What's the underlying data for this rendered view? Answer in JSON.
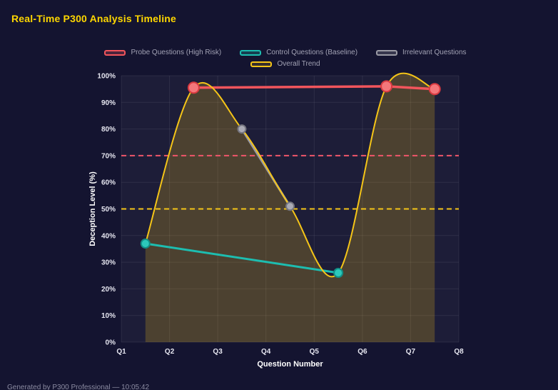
{
  "header": {
    "title": "Real-Time P300 Analysis Timeline"
  },
  "footer": {
    "text": "Generated by P300 Professional — 10:05:42"
  },
  "colors": {
    "background": "#141430",
    "plot_background": "#1d1d38",
    "title": "#ffd700",
    "probe": "#f2555c",
    "control": "#1dbdb0",
    "irrelevant": "#9a9aa4",
    "trend": "#f5c518",
    "threshold_high": "#f0566a",
    "threshold_mid": "#f5c518"
  },
  "chart_data": {
    "type": "line",
    "title": "Real-Time P300 Analysis Timeline",
    "xlabel": "Question Number",
    "ylabel": "Deception Level (%)",
    "x_ticks": [
      "Q1",
      "Q2",
      "Q3",
      "Q4",
      "Q5",
      "Q6",
      "Q7",
      "Q8"
    ],
    "x_range": [
      1,
      8
    ],
    "ylim": [
      0,
      100
    ],
    "y_tick_step": 10,
    "y_tick_suffix": "%",
    "grid": true,
    "legend_position": "top",
    "thresholds": [
      {
        "value": 70,
        "color": "#f0566a",
        "dash": true
      },
      {
        "value": 50,
        "color": "#f5c518",
        "dash": true
      }
    ],
    "series": [
      {
        "name": "Probe Questions (High Risk)",
        "color": "#f2555c",
        "point_fill": "#f4777b",
        "point_stroke": "#d93a41",
        "point_radius": 7.5,
        "width": 3.5,
        "smooth": false,
        "fill": false,
        "show_points": true,
        "points": [
          [
            2.5,
            95.5
          ],
          [
            6.5,
            96
          ],
          [
            7.5,
            95
          ]
        ]
      },
      {
        "name": "Control Questions (Baseline)",
        "color": "#1dbdb0",
        "point_fill": "#2cc9bb",
        "point_stroke": "#128f86",
        "point_radius": 6,
        "width": 3,
        "smooth": false,
        "fill": false,
        "show_points": true,
        "points": [
          [
            1.5,
            37
          ],
          [
            5.5,
            26
          ]
        ]
      },
      {
        "name": "Irrelevant Questions",
        "color": "#9a9aa4",
        "point_fill": "#ababb5",
        "point_stroke": "#75757f",
        "point_radius": 5.5,
        "width": 3,
        "smooth": false,
        "fill": false,
        "show_points": true,
        "points": [
          [
            3.5,
            80
          ],
          [
            4.5,
            51
          ]
        ]
      },
      {
        "name": "Overall Trend",
        "color": "#f5c518",
        "point_fill": "#f5c518",
        "point_stroke": "#c79b00",
        "point_radius": 0,
        "width": 2,
        "smooth": true,
        "fill": true,
        "fill_opacity": 0.22,
        "show_points": false,
        "points": [
          [
            1.5,
            37
          ],
          [
            2.5,
            95.5
          ],
          [
            3.5,
            80
          ],
          [
            4.5,
            51
          ],
          [
            5.5,
            26
          ],
          [
            6.5,
            96
          ],
          [
            7.5,
            95
          ]
        ]
      }
    ]
  }
}
